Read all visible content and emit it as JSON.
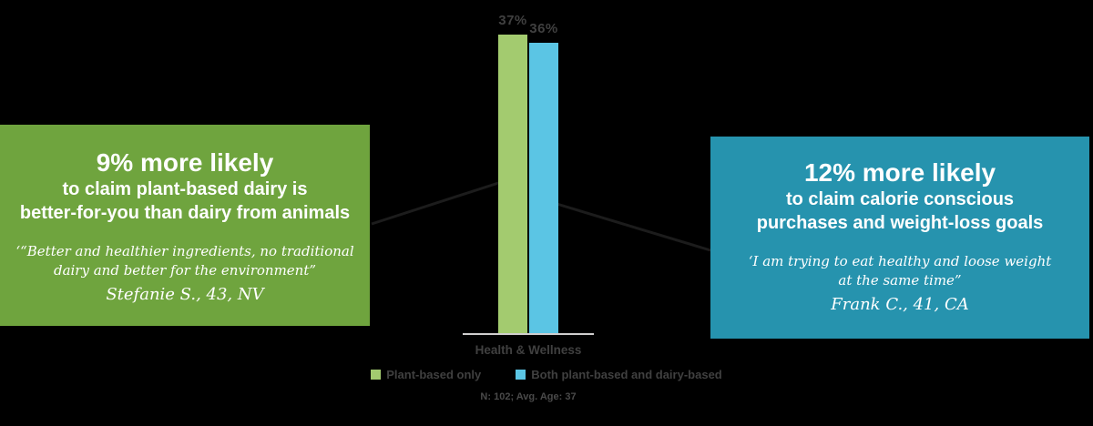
{
  "canvas": {
    "background": "#000000"
  },
  "chart_data": {
    "type": "bar",
    "categories": [
      "Health & Wellness"
    ],
    "series": [
      {
        "name": "Plant-based only",
        "values": [
          37
        ],
        "data_label": "37%",
        "color": "#A3CB6F"
      },
      {
        "name": "Both plant-based and dairy-based",
        "values": [
          36
        ],
        "data_label": "36%",
        "color": "#5BC5E4"
      }
    ],
    "ylim": [
      0,
      41.5
    ],
    "grid": false,
    "legend_position": "bottom",
    "axis_line_color": "#D0CECE",
    "label_color": "#404040",
    "note": "N: 102; Avg. Age: 37"
  },
  "left_callout": {
    "background": "#6FA43E",
    "headline": "9% more likely",
    "line2": "to claim plant-based dairy is",
    "line3": "better-for-you than dairy from animals",
    "quote_line1": "‘“Better and healthier ingredients, no traditional",
    "quote_line2": "dairy and better for the environment”",
    "attribution": "Stefanie S., 43, NV"
  },
  "right_callout": {
    "background": "#2693AE",
    "headline": "12% more likely",
    "line2": "to claim calorie conscious",
    "line3": "purchases and weight-loss goals",
    "quote_line1": "‘I am trying to eat healthy and loose weight",
    "quote_line2": "at the same time”",
    "attribution": "Frank C., 41, CA"
  }
}
